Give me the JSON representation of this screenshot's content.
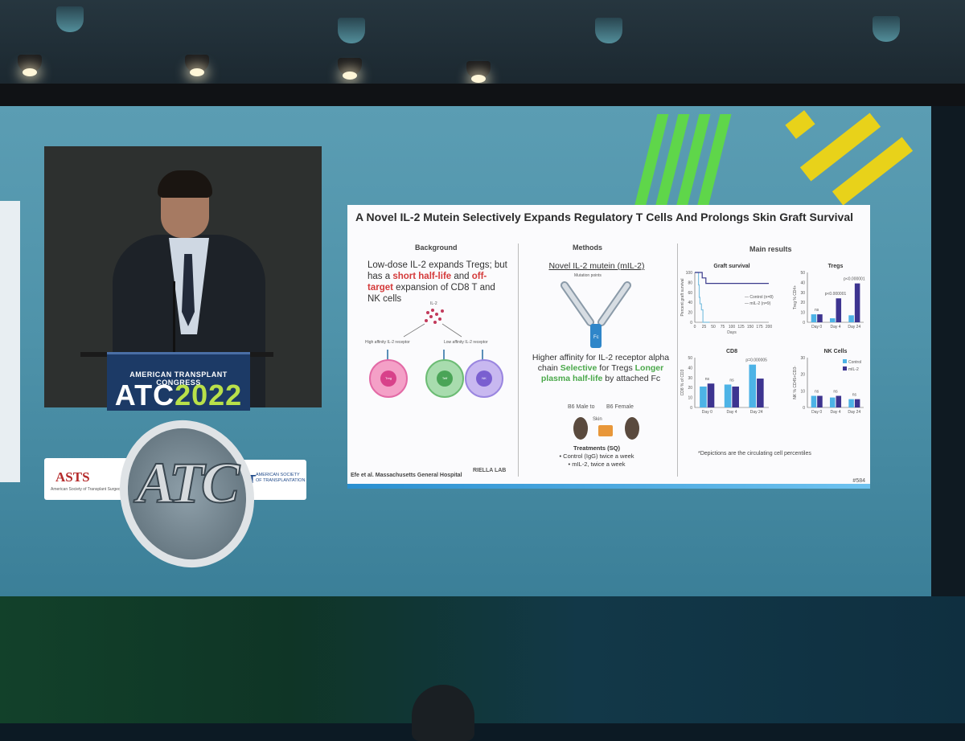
{
  "slide": {
    "title": "A Novel IL-2 Mutein Selectively Expands Regulatory T Cells And Prolongs Skin Graft Survival",
    "background": {
      "heading": "Background",
      "text_pre": "Low-dose IL-2 expands Tregs; but has a ",
      "text_red1": "short half-life",
      "text_mid": " and ",
      "text_red2": "off-target",
      "text_post": " expansion of CD8 T and NK cells",
      "il2_label": "IL-2",
      "high_affinity": "High affinity IL-2 receptor",
      "low_affinity": "Low affinity IL-2 receptor",
      "cells": [
        "Treg",
        "Teff",
        "NK"
      ]
    },
    "methods": {
      "heading": "Methods",
      "title": "Novel IL-2 mutein (mIL-2)",
      "mutation_label": "Mutation points",
      "fc_label": "Fc",
      "text_pre": "Higher affinity for IL-2 receptor alpha chain ",
      "selective": "Selective",
      "text_mid": " for Tregs",
      "longer": "Longer plasma half-life",
      "text_post": " by attached Fc",
      "donor": "B6 Male to",
      "skin": "Skin",
      "recipient": "B6 Female",
      "treatments_heading": "Treatments (SQ)",
      "treatments": [
        "Control (IgG) twice a week",
        "mIL-2, twice a week"
      ]
    },
    "results": {
      "heading": "Main results",
      "note": "*Depictions are the circulating cell percentiles"
    },
    "footer_left": "Efe et al. Massachusetts General Hospital",
    "footer_lab": "RIELLA LAB",
    "footer_right": "#584"
  },
  "chart_data": [
    {
      "type": "line",
      "title": "Graft survival",
      "xlabel": "Days",
      "ylabel": "Percent graft survival",
      "xlim": [
        0,
        200
      ],
      "ylim": [
        0,
        100
      ],
      "xticks": [
        0,
        25,
        50,
        75,
        100,
        125,
        150,
        175,
        200
      ],
      "yticks": [
        0,
        20,
        40,
        60,
        80,
        100
      ],
      "series": [
        {
          "name": "Control (n=8)",
          "color": "#7fc1e0",
          "x": [
            0,
            10,
            12,
            14,
            18,
            22,
            40
          ],
          "y": [
            100,
            75,
            50,
            37,
            25,
            0,
            0
          ]
        },
        {
          "name": "mIL-2 (n=9)",
          "color": "#3a3a8c",
          "x": [
            0,
            20,
            30,
            80,
            200
          ],
          "y": [
            100,
            89,
            78,
            78,
            78
          ]
        }
      ]
    },
    {
      "type": "bar",
      "title": "Tregs",
      "ylabel": "Treg % CD4+",
      "categories": [
        "Day 0",
        "Day 4",
        "Day 24"
      ],
      "ylim": [
        0,
        50
      ],
      "yticks": [
        0,
        10,
        20,
        30,
        40,
        50
      ],
      "series": [
        {
          "name": "Control",
          "color": "#4db3e6",
          "values": [
            8,
            4,
            7
          ]
        },
        {
          "name": "mIL-2",
          "color": "#3d3490",
          "values": [
            8,
            24,
            39
          ]
        }
      ],
      "annotations": [
        "ns",
        "p<0.000001",
        "p<0.000001"
      ]
    },
    {
      "type": "bar",
      "title": "CD8",
      "ylabel": "CD8 % of CD3",
      "categories": [
        "Day 0",
        "Day 4",
        "Day 24"
      ],
      "ylim": [
        0,
        50
      ],
      "yticks": [
        0,
        10,
        20,
        30,
        40,
        50
      ],
      "series": [
        {
          "name": "Control",
          "color": "#4db3e6",
          "values": [
            21,
            23,
            43
          ]
        },
        {
          "name": "mIL-2",
          "color": "#3d3490",
          "values": [
            24,
            21,
            29
          ]
        }
      ],
      "annotations": [
        "ns",
        "ns",
        "p=0.000005"
      ]
    },
    {
      "type": "bar",
      "title": "NK Cells",
      "ylabel": "NK % CD45+CD3-",
      "categories": [
        "Day 0",
        "Day 4",
        "Day 24"
      ],
      "ylim": [
        0,
        30
      ],
      "yticks": [
        0,
        10,
        20,
        30
      ],
      "series": [
        {
          "name": "Control",
          "color": "#4db3e6",
          "values": [
            7,
            6,
            5
          ]
        },
        {
          "name": "mIL-2",
          "color": "#3d3490",
          "values": [
            7,
            7,
            5
          ]
        }
      ],
      "annotations": [
        "ns",
        "ns",
        "ns"
      ],
      "legend": [
        "Control",
        "mIL-2"
      ]
    }
  ],
  "venue": {
    "podium_line1": "AMERICAN TRANSPLANT CONGRESS",
    "podium_atc": "ATC",
    "podium_year": "2022",
    "logo_atc": "ATC",
    "asts": "ASTS",
    "asts_sub": "American Society of Transplant Surgeons",
    "ast": "AST",
    "ast_sub": "AMERICAN SOCIETY OF TRANSPLANTATION"
  }
}
